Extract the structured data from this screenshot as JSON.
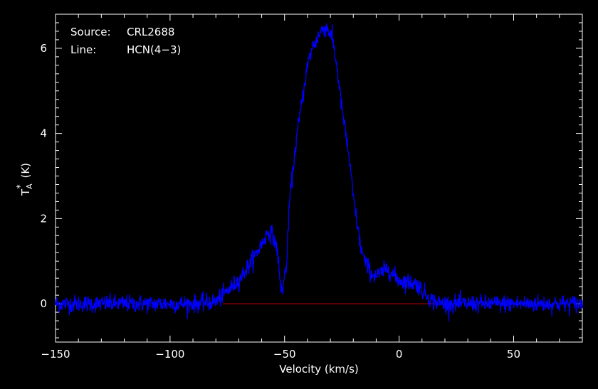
{
  "chart_data": {
    "type": "line",
    "info": {
      "source_label": "Source:",
      "source_value": "CRL2688",
      "line_label": "Line:",
      "line_value": "HCN(4−3)"
    },
    "xlabel": "Velocity (km/s)",
    "ylabel": "T",
    "ylabel_sub": "A",
    "ylabel_sup": "*",
    "ylabel_unit": "(K)",
    "xlim": [
      -150,
      80
    ],
    "ylim": [
      -0.9,
      6.8
    ],
    "xticks": [
      -150,
      -100,
      -50,
      0,
      50
    ],
    "xtick_labels": [
      "−150",
      "−100",
      "−50",
      "0",
      "50"
    ],
    "yticks": [
      0,
      2,
      4,
      6
    ],
    "ytick_labels": [
      "0",
      "2",
      "4",
      "6"
    ],
    "baseline": {
      "y": 0,
      "x_start": -77,
      "x_end": 15,
      "color": "#cc0000"
    },
    "series": [
      {
        "color": "#0000ff",
        "noise_rms": 0.1,
        "x": [
          -150,
          -110,
          -90,
          -80,
          -77,
          -70,
          -65,
          -60,
          -57,
          -55,
          -53,
          -52,
          -51,
          -49,
          -48,
          -45,
          -42,
          -40,
          -38,
          -35,
          -33,
          -31,
          -29,
          -27,
          -25,
          -22,
          -20,
          -17,
          -15,
          -12,
          -10,
          -7,
          -5,
          -3,
          0,
          5,
          8,
          12,
          15,
          20,
          40,
          60,
          80
        ],
        "y": [
          0,
          0,
          0,
          0.05,
          0.2,
          0.55,
          0.95,
          1.4,
          1.7,
          1.6,
          1.2,
          0.5,
          0.3,
          1.0,
          2.3,
          3.8,
          4.9,
          5.6,
          6.0,
          6.3,
          6.5,
          6.45,
          6.2,
          5.5,
          4.6,
          3.5,
          2.5,
          1.4,
          1.0,
          0.7,
          0.65,
          0.75,
          0.85,
          0.7,
          0.55,
          0.5,
          0.45,
          0.2,
          0.05,
          0,
          0,
          0,
          0
        ]
      }
    ]
  }
}
